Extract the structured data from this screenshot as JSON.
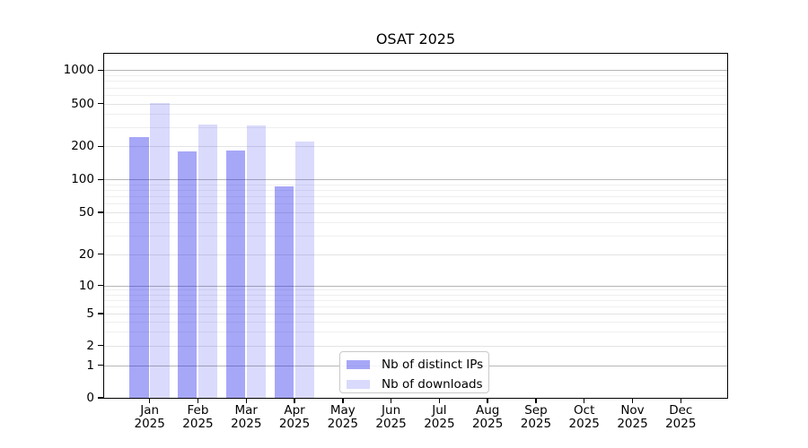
{
  "title": "OSAT 2025",
  "background_color": "#ffffff",
  "legend": {
    "items": [
      {
        "label": "Nb of distinct IPs",
        "color": "rgba(10,10,235,0.36)",
        "color_hex": "#a8a8f9"
      },
      {
        "label": "Nb of downloads",
        "color": "rgba(10,10,235,0.15)",
        "color_hex": "#dadafb"
      }
    ]
  },
  "x_axis": {
    "months": [
      "Jan",
      "Feb",
      "Mar",
      "Apr",
      "May",
      "Jun",
      "Jul",
      "Aug",
      "Sep",
      "Oct",
      "Nov",
      "Dec"
    ],
    "year": "2025"
  },
  "y_axis": {
    "tick_labels": [
      "0",
      "1",
      "2",
      "5",
      "10",
      "20",
      "50",
      "100",
      "200",
      "500",
      "1000"
    ]
  },
  "chart_data": {
    "type": "bar",
    "title": "OSAT 2025",
    "categories": [
      "Jan 2025",
      "Feb 2025",
      "Mar 2025",
      "Apr 2025",
      "May 2025",
      "Jun 2025",
      "Jul 2025",
      "Aug 2025",
      "Sep 2025",
      "Oct 2025",
      "Nov 2025",
      "Dec 2025"
    ],
    "series": [
      {
        "name": "Nb of distinct IPs",
        "color": "rgba(10,10,235,0.36)",
        "color_hex": "#a8a8f9",
        "values": [
          242,
          180,
          184,
          86,
          null,
          null,
          null,
          null,
          null,
          null,
          null,
          null
        ]
      },
      {
        "name": "Nb of downloads",
        "color": "rgba(10,10,235,0.15)",
        "color_hex": "#dadafb",
        "values": [
          507,
          322,
          312,
          222,
          null,
          null,
          null,
          null,
          null,
          null,
          null,
          null
        ]
      }
    ],
    "xlabel": "",
    "ylabel": "",
    "yscale": "symlog",
    "yticks": [
      0,
      1,
      2,
      5,
      10,
      20,
      50,
      100,
      200,
      500,
      1000
    ],
    "ylim": [
      0,
      1400
    ],
    "grid": "both",
    "legend_position": "lower center (inside axes)",
    "axis_colors": {
      "spine": "#000000",
      "major_grid": "#b6b6b6",
      "minor_grid": "#efefef",
      "labeled_minor_grid": "#e3e3e3"
    }
  }
}
